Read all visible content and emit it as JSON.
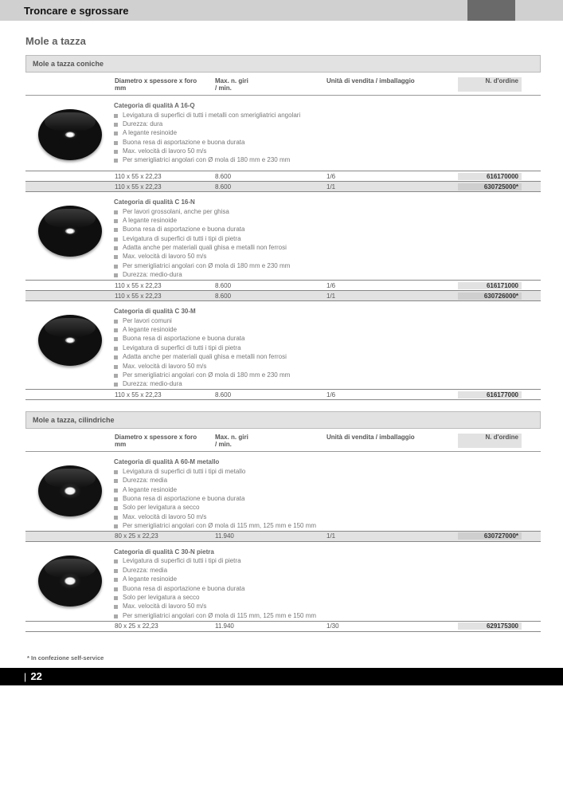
{
  "header_title": "Troncare e sgrossare",
  "sub_title": "Mole a tazza",
  "columns": {
    "dim": "Diametro x spessore x foro\nmm",
    "giri": "Max. n. giri\n/ min.",
    "unit": "Unità di vendita / imballaggio",
    "ord": "N. d'ordine"
  },
  "sections": [
    {
      "title": "Mole a tazza coniche",
      "products": [
        {
          "quality": "Categoria di qualità A 16-Q",
          "bullets": [
            "Levigatura di superfici di tutti i metalli con smerigliatrici angolari",
            "Durezza: dura",
            "A legante resinoide",
            "Buona resa di asportazione e buona durata",
            "Max. velocità di lavoro 50 m/s",
            "Per smerigliatrici angolari con Ø mola di 180 mm e 230 mm"
          ],
          "rows": [
            {
              "dim": "110 x 55 x 22,23",
              "giri": "8.600",
              "unit": "1/6",
              "ord": "616170000",
              "alt": false
            },
            {
              "dim": "110 x 55 x 22,23",
              "giri": "8.600",
              "unit": "1/1",
              "ord": "630725000*",
              "alt": true
            }
          ],
          "img": "cone"
        },
        {
          "quality": "Categoria di qualità C 16-N",
          "bullets": [
            "Per lavori grossolani, anche per ghisa",
            "A legante resinoide",
            "Buona resa di asportazione e buona durata",
            "Levigatura di superfici di tutti i tipi di pietra",
            "Adatta anche per materiali quali ghisa e metalli non ferrosi",
            "Max. velocità di lavoro 50 m/s",
            "Per smerigliatrici angolari con Ø mola di 180 mm e 230 mm",
            "Durezza: medio-dura"
          ],
          "rows": [
            {
              "dim": "110 x 55 x 22,23",
              "giri": "8.600",
              "unit": "1/6",
              "ord": "616171000",
              "alt": false
            },
            {
              "dim": "110 x 55 x 22,23",
              "giri": "8.600",
              "unit": "1/1",
              "ord": "630726000*",
              "alt": true
            }
          ],
          "img": "cone"
        },
        {
          "quality": "Categoria di qualità C 30-M",
          "bullets": [
            "Per lavori comuni",
            "A legante resinoide",
            "Buona resa di asportazione e buona durata",
            "Levigatura di superfici di tutti i tipi di pietra",
            "Adatta anche per materiali quali ghisa e metalli non ferrosi",
            "Max. velocità di lavoro 50 m/s",
            "Per smerigliatrici angolari con Ø mola di 180 mm e 230 mm",
            "Durezza: medio-dura"
          ],
          "rows": [
            {
              "dim": "110 x 55 x 22,23",
              "giri": "8.600",
              "unit": "1/6",
              "ord": "616177000",
              "alt": false
            }
          ],
          "img": "cone"
        }
      ]
    },
    {
      "title": "Mole a tazza, cilindriche",
      "products": [
        {
          "quality": "Categoria di qualità A 60-M metallo",
          "bullets": [
            "Levigatura di superfici di tutti i tipi di metallo",
            "Durezza: media",
            "A legante resinoide",
            "Buona resa di asportazione e buona durata",
            "Solo per levigatura a secco",
            "Max. velocità di lavoro 50 m/s",
            "Per smerigliatrici angolari con Ø mola di 115 mm, 125 mm e 150 mm"
          ],
          "rows": [
            {
              "dim": "80 x 25 x 22,23",
              "giri": "11.940",
              "unit": "1/1",
              "ord": "630727000*",
              "alt": true
            }
          ],
          "img": "cyl"
        },
        {
          "quality": "Categoria di qualità C 30-N pietra",
          "bullets": [
            "Levigatura di superfici di tutti i tipi di pietra",
            "Durezza: media",
            "A legante resinoide",
            "Buona resa di asportazione e buona durata",
            "Solo per levigatura a secco",
            "Max. velocità di lavoro 50 m/s",
            "Per smerigliatrici angolari con Ø mola di 115 mm, 125 mm e 150 mm"
          ],
          "rows": [
            {
              "dim": "80 x 25 x 22,23",
              "giri": "11.940",
              "unit": "1/30",
              "ord": "629175300",
              "alt": false
            }
          ],
          "img": "cyl"
        }
      ]
    }
  ],
  "footnote": "* In confezione self-service",
  "page_number": "22"
}
